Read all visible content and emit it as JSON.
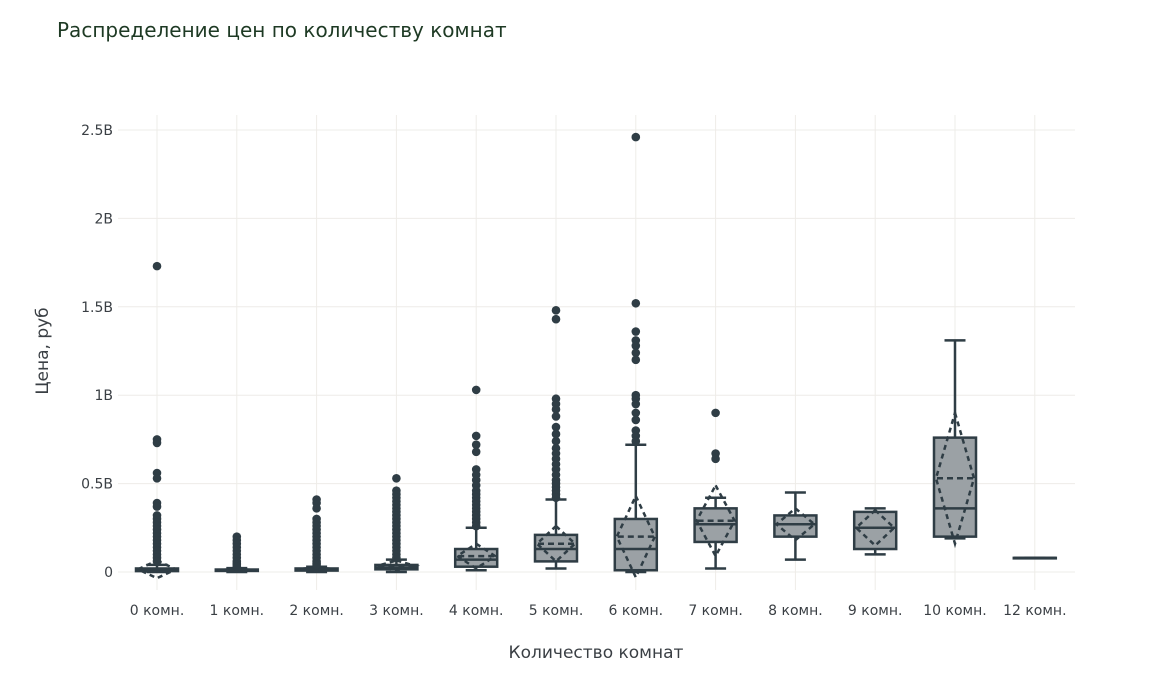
{
  "chart_data": {
    "type": "box",
    "title": "Распределение цен по количеству комнат",
    "xlabel": "Количество комнат",
    "ylabel": "Цена, руб",
    "ylim": [
      -0.1,
      2.6
    ],
    "yticks": [
      0,
      0.5,
      1,
      1.5,
      2,
      2.5
    ],
    "ytick_labels": [
      "0",
      "0.5B",
      "1B",
      "1.5B",
      "2B",
      "2.5B"
    ],
    "y_unit": "billions of rubles",
    "grid": true,
    "colors": {
      "fill": "#9ba1a5",
      "line": "#2f3d45",
      "grid": "#eeece8",
      "title": "#1e3a24"
    },
    "categories": [
      "0 комн.",
      "1 комн.",
      "2 комн.",
      "3 комн.",
      "4 комн.",
      "5 комн.",
      "6 комн.",
      "7 комн.",
      "8 комн.",
      "9 комн.",
      "10 комн.",
      "12 комн."
    ],
    "boxes": [
      {
        "lower": 0.0,
        "q1": 0.005,
        "median": 0.01,
        "q3": 0.02,
        "upper": 0.04,
        "mean": 0.015,
        "sd": 0.05,
        "outliers": [
          1.73,
          0.75,
          0.73,
          0.56,
          0.53,
          0.39,
          0.37,
          0.32,
          0.3,
          0.28,
          0.26,
          0.24,
          0.22,
          0.2,
          0.18,
          0.16,
          0.14,
          0.12,
          0.1,
          0.08,
          0.06
        ]
      },
      {
        "lower": 0.0,
        "q1": 0.006,
        "median": 0.01,
        "q3": 0.014,
        "upper": 0.022,
        "mean": 0.011,
        "sd": 0.006,
        "outliers": [
          0.2,
          0.18,
          0.16,
          0.14,
          0.12,
          0.1,
          0.08,
          0.06,
          0.05,
          0.04,
          0.03
        ]
      },
      {
        "lower": 0.0,
        "q1": 0.008,
        "median": 0.013,
        "q3": 0.02,
        "upper": 0.03,
        "mean": 0.016,
        "sd": 0.01,
        "outliers": [
          0.41,
          0.39,
          0.36,
          0.3,
          0.28,
          0.26,
          0.24,
          0.22,
          0.2,
          0.18,
          0.16,
          0.14,
          0.12,
          0.1,
          0.08,
          0.06,
          0.05,
          0.04
        ]
      },
      {
        "lower": 0.0,
        "q1": 0.015,
        "median": 0.025,
        "q3": 0.04,
        "upper": 0.07,
        "mean": 0.035,
        "sd": 0.03,
        "outliers": [
          0.53,
          0.46,
          0.44,
          0.42,
          0.4,
          0.38,
          0.36,
          0.34,
          0.32,
          0.3,
          0.28,
          0.26,
          0.24,
          0.22,
          0.2,
          0.18,
          0.16,
          0.14,
          0.12,
          0.1,
          0.08
        ]
      },
      {
        "lower": 0.01,
        "q1": 0.03,
        "median": 0.07,
        "q3": 0.13,
        "upper": 0.25,
        "mean": 0.09,
        "sd": 0.07,
        "outliers": [
          1.03,
          0.77,
          0.72,
          0.68,
          0.58,
          0.55,
          0.52,
          0.49,
          0.46,
          0.44,
          0.42,
          0.4,
          0.38,
          0.36,
          0.34,
          0.32,
          0.3,
          0.28,
          0.26
        ]
      },
      {
        "lower": 0.02,
        "q1": 0.06,
        "median": 0.13,
        "q3": 0.21,
        "upper": 0.41,
        "mean": 0.16,
        "sd": 0.1,
        "outliers": [
          1.48,
          1.43,
          0.98,
          0.95,
          0.92,
          0.88,
          0.82,
          0.78,
          0.74,
          0.7,
          0.67,
          0.64,
          0.61,
          0.58,
          0.55,
          0.52,
          0.5,
          0.48,
          0.46,
          0.44,
          0.42
        ]
      },
      {
        "lower": 0.0,
        "q1": 0.01,
        "median": 0.13,
        "q3": 0.3,
        "upper": 0.72,
        "mean": 0.2,
        "sd": 0.23,
        "outliers": [
          2.46,
          1.52,
          1.36,
          1.31,
          1.28,
          1.24,
          1.2,
          1.0,
          0.98,
          0.95,
          0.9,
          0.86,
          0.8,
          0.77,
          0.74
        ]
      },
      {
        "lower": 0.02,
        "q1": 0.17,
        "median": 0.27,
        "q3": 0.36,
        "upper": 0.42,
        "mean": 0.29,
        "sd": 0.2,
        "outliers": [
          0.9,
          0.67,
          0.64
        ]
      },
      {
        "lower": 0.07,
        "q1": 0.2,
        "median": 0.27,
        "q3": 0.32,
        "upper": 0.45,
        "mean": 0.27,
        "sd": 0.09,
        "outliers": []
      },
      {
        "lower": 0.1,
        "q1": 0.13,
        "median": 0.25,
        "q3": 0.34,
        "upper": 0.36,
        "mean": 0.25,
        "sd": 0.1,
        "outliers": []
      },
      {
        "lower": 0.19,
        "q1": 0.2,
        "median": 0.36,
        "q3": 0.76,
        "upper": 1.31,
        "mean": 0.53,
        "sd": 0.37,
        "outliers": []
      },
      {
        "lower": 0.08,
        "q1": 0.08,
        "median": 0.08,
        "q3": 0.08,
        "upper": 0.08,
        "mean": 0.08,
        "sd": 0,
        "outliers": []
      }
    ]
  }
}
